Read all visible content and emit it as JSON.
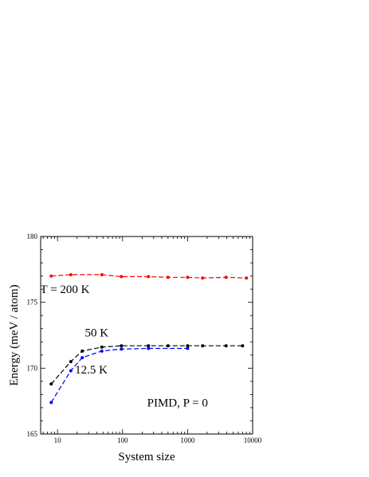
{
  "chart_data": {
    "type": "line",
    "xscale": "log",
    "xlabel": "System size",
    "ylabel": "Energy  (meV / atom)",
    "xlim": [
      5.5,
      10000
    ],
    "ylim": [
      165,
      180
    ],
    "xticks": [
      10,
      100,
      1000,
      10000
    ],
    "xtick_labels": [
      "10",
      "100",
      "1000",
      "10000"
    ],
    "yticks": [
      165,
      170,
      175,
      180
    ],
    "ytick_labels": [
      "165",
      "170",
      "175",
      "180"
    ],
    "grid": false,
    "legend": "none",
    "series": [
      {
        "name": "T = 200 K",
        "color": "#ff0000",
        "x": [
          8,
          16,
          48,
          96,
          250,
          500,
          1000,
          1700,
          3900,
          8000
        ],
        "y": [
          177.0,
          177.1,
          177.1,
          176.95,
          176.95,
          176.9,
          176.9,
          176.85,
          176.9,
          176.85
        ]
      },
      {
        "name": "50 K",
        "color": "#000000",
        "x": [
          8,
          16,
          24,
          48,
          96,
          250,
          500,
          1000,
          1700,
          3900,
          7000
        ],
        "y": [
          168.8,
          170.5,
          171.3,
          171.6,
          171.7,
          171.7,
          171.7,
          171.7,
          171.7,
          171.7,
          171.7
        ]
      },
      {
        "name": "12.5 K",
        "color": "#0000ff",
        "x": [
          8,
          16,
          24,
          48,
          96,
          250,
          1000
        ],
        "y": [
          167.4,
          169.8,
          170.8,
          171.3,
          171.45,
          171.5,
          171.5
        ]
      }
    ],
    "annotations": [
      {
        "text": "T = 200 K",
        "x": 13,
        "y": 175.7
      },
      {
        "text": "50 K",
        "x": 40,
        "y": 172.4
      },
      {
        "text": "12.5 K",
        "x": 33,
        "y": 169.6
      },
      {
        "text": "PIMD,  P = 0",
        "x": 700,
        "y": 167.1
      }
    ]
  }
}
